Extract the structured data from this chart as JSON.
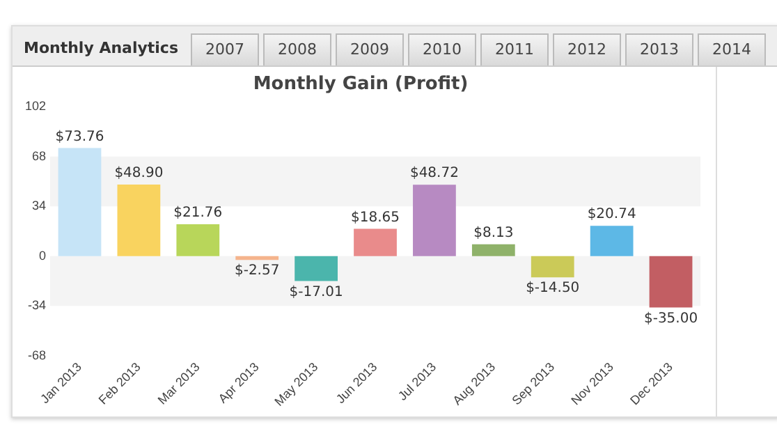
{
  "chart_data": {
    "type": "bar",
    "title": "Monthly Gain (Profit)",
    "categories": [
      "Jan 2013",
      "Feb 2013",
      "Mar 2013",
      "Apr 2013",
      "May 2013",
      "Jun 2013",
      "Jul 2013",
      "Aug 2013",
      "Sep 2013",
      "Nov 2013",
      "Dec 2013"
    ],
    "values": [
      73.76,
      48.9,
      21.76,
      -2.57,
      -17.01,
      18.65,
      48.72,
      8.13,
      -14.5,
      20.74,
      -35.0
    ],
    "value_labels": [
      "$73.76",
      "$48.90",
      "$21.76",
      "$-2.57",
      "$-17.01",
      "$18.65",
      "$48.72",
      "$8.13",
      "$-14.50",
      "$20.74",
      "$-35.00"
    ],
    "colors": [
      "#c6e4f7",
      "#f9d35f",
      "#b8d65a",
      "#f5b48c",
      "#4bb5ac",
      "#e98b8b",
      "#b78ac2",
      "#8fb26a",
      "#cbca58",
      "#5db8e6",
      "#c25e63"
    ],
    "ylim": [
      -68,
      102
    ],
    "yticks": [
      102,
      68,
      34,
      0,
      -34,
      -68
    ],
    "bands": [
      {
        "axis": "y",
        "from": 34,
        "to": 68,
        "color": "#f4f4f4"
      },
      {
        "axis": "y",
        "from": -34,
        "to": 0,
        "color": "#f4f4f4"
      }
    ],
    "annotations": [
      "Monthly Analytics",
      "2007",
      "2008",
      "2009",
      "2010",
      "2011",
      "2012",
      "2013",
      "2014"
    ],
    "grid": false,
    "legend": false
  }
}
